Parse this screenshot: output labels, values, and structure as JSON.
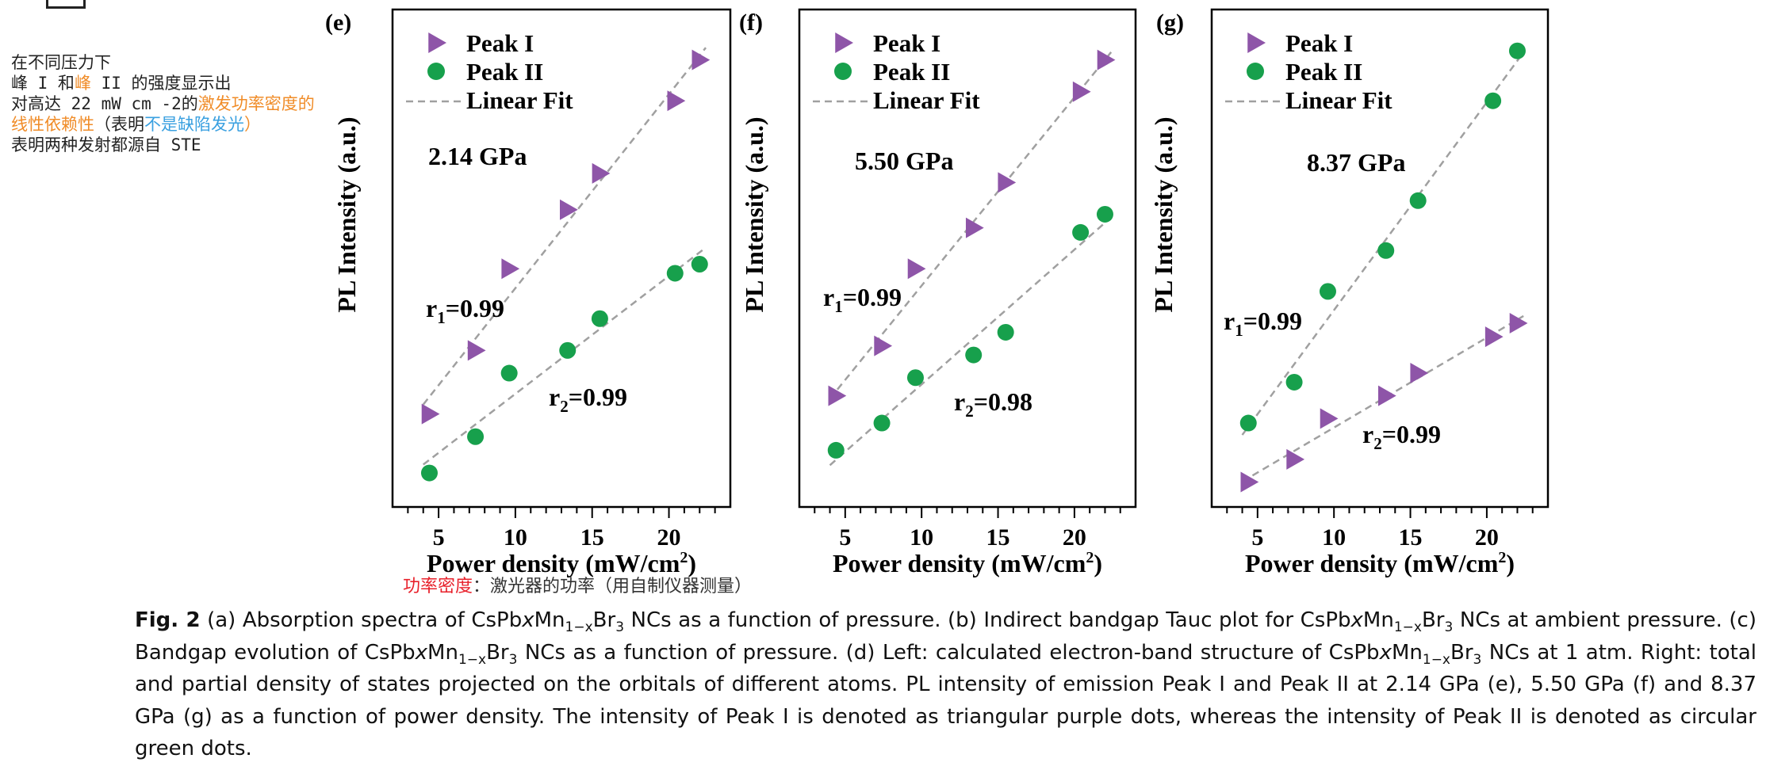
{
  "notes": {
    "line1": "在不同压力下",
    "line2_a": "峰 I 和",
    "line2_b": "峰",
    "line2_c": " II 的强度显示出",
    "line3_a": "对高达 22 mW cm -2的",
    "line3_b": "激发功率密度的",
    "line4_a": "线性依赖性",
    "line4_b": "（表明",
    "line4_c": "不是缺陷发光",
    "line4_d": "）",
    "line5": "表明两种发射都源自 STE"
  },
  "annotation": {
    "term": "功率密度",
    "rest": "：激光器的功率（用自制仪器测量）"
  },
  "colors": {
    "peak1": "#8e55a8",
    "peak2": "#17a04c",
    "fit": "#a0a0a0",
    "axis": "#000000"
  },
  "chart_data": [
    {
      "panel": "(e)",
      "type": "scatter",
      "xlabel": "Power density (mW/cm²)",
      "ylabel": "PL Intensity (a.u.)",
      "xlim": [
        2,
        24
      ],
      "xticks": [
        5,
        10,
        15,
        20
      ],
      "pressure": "2.14 GPa",
      "r1": "r1=0.99",
      "r2": "r2=0.99",
      "legend": [
        "Peak I",
        "Peak II",
        "Linear Fit"
      ],
      "series": [
        {
          "name": "Peak I",
          "marker": "triangle",
          "x": [
            4.4,
            7.4,
            9.6,
            13.4,
            15.5,
            20.4,
            22.0
          ],
          "y": [
            0.17,
            0.31,
            0.49,
            0.62,
            0.7,
            0.86,
            0.95
          ]
        },
        {
          "name": "Peak II",
          "marker": "circle",
          "x": [
            4.4,
            7.4,
            9.6,
            13.4,
            15.5,
            20.4,
            22.0
          ],
          "y": [
            0.04,
            0.12,
            0.26,
            0.31,
            0.38,
            0.48,
            0.5
          ]
        }
      ]
    },
    {
      "panel": "(f)",
      "type": "scatter",
      "xlabel": "Power density (mW/cm²)",
      "ylabel": "PL Intensity (a.u.)",
      "xlim": [
        2,
        24
      ],
      "xticks": [
        5,
        10,
        15,
        20
      ],
      "pressure": "5.50 GPa",
      "r1": "r1=0.99",
      "r2": "r2=0.98",
      "legend": [
        "Peak I",
        "Peak II",
        "Linear Fit"
      ],
      "series": [
        {
          "name": "Peak I",
          "marker": "triangle",
          "x": [
            4.4,
            7.4,
            9.6,
            13.4,
            15.5,
            20.4,
            22.0
          ],
          "y": [
            0.21,
            0.32,
            0.49,
            0.58,
            0.68,
            0.88,
            0.95
          ]
        },
        {
          "name": "Peak II",
          "marker": "circle",
          "x": [
            4.4,
            7.4,
            9.6,
            13.4,
            15.5,
            20.4,
            22.0
          ],
          "y": [
            0.09,
            0.15,
            0.25,
            0.3,
            0.35,
            0.57,
            0.61
          ]
        }
      ]
    },
    {
      "panel": "(g)",
      "type": "scatter",
      "xlabel": "Power density (mW/cm²)",
      "ylabel": "PL Intensity (a.u.)",
      "xlim": [
        2,
        24
      ],
      "xticks": [
        5,
        10,
        15,
        20
      ],
      "pressure": "8.37 GPa",
      "r1": "r1=0.99",
      "r2": "r2=0.99",
      "legend": [
        "Peak I",
        "Peak II",
        "Linear Fit"
      ],
      "series": [
        {
          "name": "Peak I",
          "marker": "triangle",
          "x": [
            4.4,
            7.4,
            9.6,
            13.4,
            15.5,
            20.4,
            22.0
          ],
          "y": [
            0.02,
            0.07,
            0.16,
            0.21,
            0.26,
            0.34,
            0.37
          ]
        },
        {
          "name": "Peak II",
          "marker": "circle",
          "x": [
            4.4,
            7.4,
            9.6,
            13.4,
            15.5,
            20.4,
            22.0
          ],
          "y": [
            0.15,
            0.24,
            0.44,
            0.53,
            0.64,
            0.86,
            0.97
          ]
        }
      ]
    }
  ],
  "caption": {
    "fig_label": "Fig. 2",
    "t1": " (a) Absorption spectra of CsPb",
    "t2": " NCs as a function of pressure. (b) Indirect bandgap Tauc plot for CsPb",
    "t3": " NCs at ambient pressure. (c) Bandgap evolution of CsPb",
    "t4": " NCs as a function of pressure. (d) Left: calculated electron-band structure of CsPb",
    "t5": " NCs at 1 atm. Right: total and partial density of states projected on the orbitals of different atoms. PL intensity of emission Peak I and Peak II at 2.14 GPa (e), 5.50 GPa (f) and 8.37 GPa (g) as a function of power density. The intensity of Peak I is denoted as triangular purple dots, whereas the intensity of Peak II is denoted as circular green dots.",
    "formula_x": "x",
    "formula_mn": "Mn",
    "formula_sub": "1−x",
    "formula_br": "Br",
    "formula_3": "3"
  }
}
